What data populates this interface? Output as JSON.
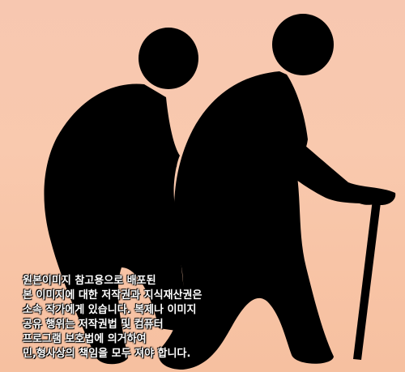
{
  "image": {
    "subject": "elderly couple silhouette",
    "colors": {
      "background": "#f8c6aa",
      "silhouette": "#000000",
      "cane": "#000000",
      "caption_text": "#ffffff"
    }
  },
  "caption": {
    "lines": [
      "원본이미지 참고용으로 배포된",
      "본 이미지에 대한 저작권과 지식재산권은",
      "소속 작가에게 있습니다. 복제나 이미지",
      "공유 행위는 저작권법 및 컴퓨터",
      "프로그램 보호법에 의거하여",
      "민,형사상의 책임을 모두 져야 합니다."
    ]
  }
}
